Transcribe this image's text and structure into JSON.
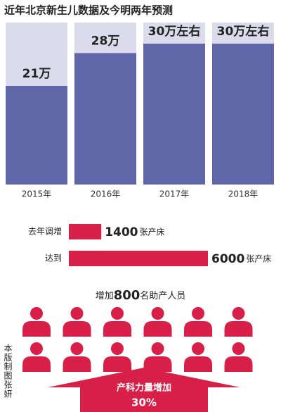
{
  "chart_data": [
    {
      "type": "bar",
      "title": "近年北京新生儿数据及今明两年预测",
      "categories": [
        "2015年",
        "2016年",
        "2017年",
        "2018年"
      ],
      "values": [
        21,
        28,
        30,
        30
      ],
      "value_labels": [
        "21万",
        "28万",
        "30万左右",
        "30万左右"
      ],
      "color": "#5f67a8",
      "track_color": "#dcdbeb",
      "ylim": [
        0,
        34.5
      ]
    },
    {
      "type": "hbar",
      "categories": [
        "去年调增",
        "达到"
      ],
      "values": [
        1400,
        6000
      ],
      "unit": "张产床",
      "color": "#d81f48",
      "xlim": [
        0,
        6000
      ]
    }
  ],
  "staff": {
    "prefix": "增加",
    "value": 800,
    "suffix": "名助产人员"
  },
  "arrow": {
    "label": "产科力量增加",
    "value_label": "30%"
  },
  "credit": [
    "本版制图",
    "张妍"
  ]
}
